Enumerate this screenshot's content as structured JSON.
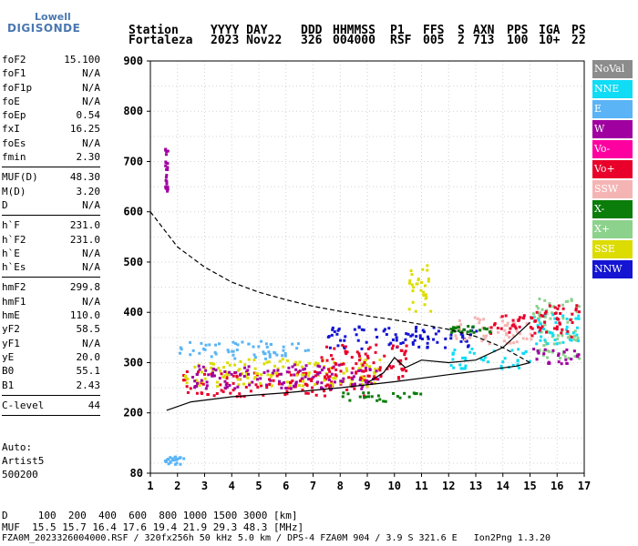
{
  "logo": {
    "line1": "Lowell",
    "line2": "DIGISONDE"
  },
  "header": {
    "row1": [
      "Station",
      "YYYY DAY",
      "DDD",
      "HHMMSS",
      "P1",
      "FFS",
      "S",
      "AXN",
      "PPS",
      "IGA",
      "PS"
    ],
    "row2": [
      "Fortaleza",
      "2023 Nov22",
      "326",
      "004000",
      "RSF",
      "005",
      "2",
      "713",
      "100",
      "10+",
      "22"
    ]
  },
  "params": [
    [
      {
        "k": "foF2",
        "v": "15.100"
      },
      {
        "k": "foF1",
        "v": "N/A"
      },
      {
        "k": "foF1p",
        "v": "N/A"
      },
      {
        "k": "foE",
        "v": "N/A"
      },
      {
        "k": "foEp",
        "v": "0.54"
      },
      {
        "k": "fxI",
        "v": "16.25"
      },
      {
        "k": "foEs",
        "v": "N/A"
      },
      {
        "k": "fmin",
        "v": "2.30"
      }
    ],
    [
      {
        "k": "MUF(D)",
        "v": "48.30"
      },
      {
        "k": "M(D)",
        "v": "3.20"
      },
      {
        "k": "D",
        "v": "N/A"
      }
    ],
    [
      {
        "k": "h`F",
        "v": "231.0"
      },
      {
        "k": "h`F2",
        "v": "231.0"
      },
      {
        "k": "h`E",
        "v": "N/A"
      },
      {
        "k": "h`Es",
        "v": "N/A"
      }
    ],
    [
      {
        "k": "hmF2",
        "v": "299.8"
      },
      {
        "k": "hmF1",
        "v": "N/A"
      },
      {
        "k": "hmE",
        "v": "110.0"
      },
      {
        "k": "yF2",
        "v": "58.5"
      },
      {
        "k": "yF1",
        "v": "N/A"
      },
      {
        "k": "yE",
        "v": "20.0"
      },
      {
        "k": "B0",
        "v": "55.1"
      },
      {
        "k": "B1",
        "v": "2.43"
      }
    ],
    [
      {
        "k": "C-level",
        "v": "44"
      }
    ]
  ],
  "auto": [
    "Auto:",
    "Artist5",
    "500200"
  ],
  "legend": [
    {
      "label": "NoVal",
      "color": "#8c8c8c"
    },
    {
      "label": "NNE",
      "color": "#10dcf5"
    },
    {
      "label": "E",
      "color": "#5ab4f5"
    },
    {
      "label": "W",
      "color": "#a000a0"
    },
    {
      "label": "Vo-",
      "color": "#ff00a0"
    },
    {
      "label": "Vo+",
      "color": "#e8002a"
    },
    {
      "label": "SSW",
      "color": "#f5b4b4"
    },
    {
      "label": "X-",
      "color": "#0a7d0a"
    },
    {
      "label": "X+",
      "color": "#8cd28c"
    },
    {
      "label": "SSE",
      "color": "#dcdc00"
    },
    {
      "label": "NNW",
      "color": "#1414d2"
    }
  ],
  "chart_data": {
    "type": "scatter",
    "title": "",
    "xlabel": "",
    "ylabel": "",
    "xlim": [
      1,
      17
    ],
    "ylim": [
      80,
      900
    ],
    "x_ticks": [
      1,
      2,
      3,
      4,
      5,
      6,
      7,
      8,
      9,
      10,
      11,
      12,
      13,
      14,
      15,
      16,
      17
    ],
    "y_ticks": [
      80,
      200,
      300,
      400,
      500,
      600,
      700,
      800,
      900
    ],
    "grid": true,
    "curves": [
      {
        "style": "dashed",
        "points": [
          [
            1.0,
            600
          ],
          [
            2.0,
            530
          ],
          [
            3.0,
            490
          ],
          [
            4.0,
            460
          ],
          [
            5.0,
            440
          ],
          [
            6.0,
            425
          ],
          [
            7.0,
            412
          ],
          [
            8.0,
            402
          ],
          [
            9.0,
            393
          ],
          [
            10.0,
            385
          ],
          [
            11.0,
            376
          ],
          [
            12.0,
            366
          ],
          [
            13.0,
            352
          ],
          [
            14.0,
            330
          ],
          [
            15.0,
            300
          ]
        ]
      },
      {
        "style": "solid",
        "points": [
          [
            1.6,
            205
          ],
          [
            2.5,
            222
          ],
          [
            4.0,
            232
          ],
          [
            6.0,
            240
          ],
          [
            8.0,
            250
          ],
          [
            10.0,
            262
          ],
          [
            12.0,
            276
          ],
          [
            13.5,
            286
          ],
          [
            14.5,
            293
          ],
          [
            15.0,
            300
          ]
        ]
      },
      {
        "style": "solid",
        "points": [
          [
            9.0,
            260
          ],
          [
            9.6,
            280
          ],
          [
            10.0,
            310
          ],
          [
            10.4,
            290
          ],
          [
            11.0,
            305
          ],
          [
            12.0,
            300
          ],
          [
            13.0,
            305
          ],
          [
            14.0,
            330
          ],
          [
            14.7,
            365
          ],
          [
            15.0,
            380
          ]
        ]
      }
    ],
    "echo_bands": [
      {
        "group": "E",
        "x": [
          2.0,
          6.8
        ],
        "y": [
          310,
          345
        ]
      },
      {
        "group": "Vo+",
        "x": [
          2.0,
          9.0
        ],
        "y": [
          235,
          285
        ]
      },
      {
        "group": "SSE",
        "x": [
          2.2,
          9.5
        ],
        "y": [
          255,
          310
        ]
      },
      {
        "group": "W",
        "x": [
          2.5,
          9.5
        ],
        "y": [
          250,
          300
        ]
      },
      {
        "group": "NNW",
        "x": [
          7.5,
          13.0
        ],
        "y": [
          330,
          375
        ]
      },
      {
        "group": "Vo+",
        "x": [
          7.2,
          10.5
        ],
        "y": [
          270,
          340
        ]
      },
      {
        "group": "NNE",
        "x": [
          12.0,
          15.0
        ],
        "y": [
          290,
          330
        ]
      },
      {
        "group": "SSW",
        "x": [
          12.0,
          15.0
        ],
        "y": [
          340,
          395
        ]
      },
      {
        "group": "Vo+",
        "x": [
          13.5,
          15.0
        ],
        "y": [
          360,
          400
        ]
      },
      {
        "group": "X+",
        "x": [
          15.0,
          16.8
        ],
        "y": [
          310,
          430
        ]
      },
      {
        "group": "NNE",
        "x": [
          15.0,
          16.8
        ],
        "y": [
          340,
          400
        ]
      },
      {
        "group": "W",
        "x": [
          15.0,
          16.8
        ],
        "y": [
          300,
          330
        ]
      },
      {
        "group": "Vo+",
        "x": [
          15.0,
          16.8
        ],
        "y": [
          350,
          420
        ]
      },
      {
        "group": "X-",
        "x": [
          8.0,
          11.0
        ],
        "y": [
          225,
          245
        ]
      },
      {
        "group": "X-",
        "x": [
          12.0,
          13.5
        ],
        "y": [
          360,
          375
        ]
      },
      {
        "group": "SSE",
        "x": [
          10.5,
          11.3
        ],
        "y": [
          395,
          500
        ]
      },
      {
        "group": "W",
        "x": [
          1.5,
          1.6
        ],
        "y": [
          640,
          740
        ]
      },
      {
        "group": "E",
        "x": [
          1.5,
          2.2
        ],
        "y": [
          100,
          115
        ]
      }
    ]
  },
  "footer": {
    "dist_label": "D",
    "dist_values": "100  200  400  600  800 1000 1500 3000 [km]",
    "muf_label": "MUF",
    "muf_values": "15.5 15.7 16.4 17.6 19.4 21.9 29.3 48.3 [MHz]",
    "info": "FZA0M_2023326004000.RSF / 320fx256h 50 kHz 5.0 km / DPS-4 FZA0M 904 / 3.9 S 321.6 E   Ion2Png 1.3.20"
  }
}
